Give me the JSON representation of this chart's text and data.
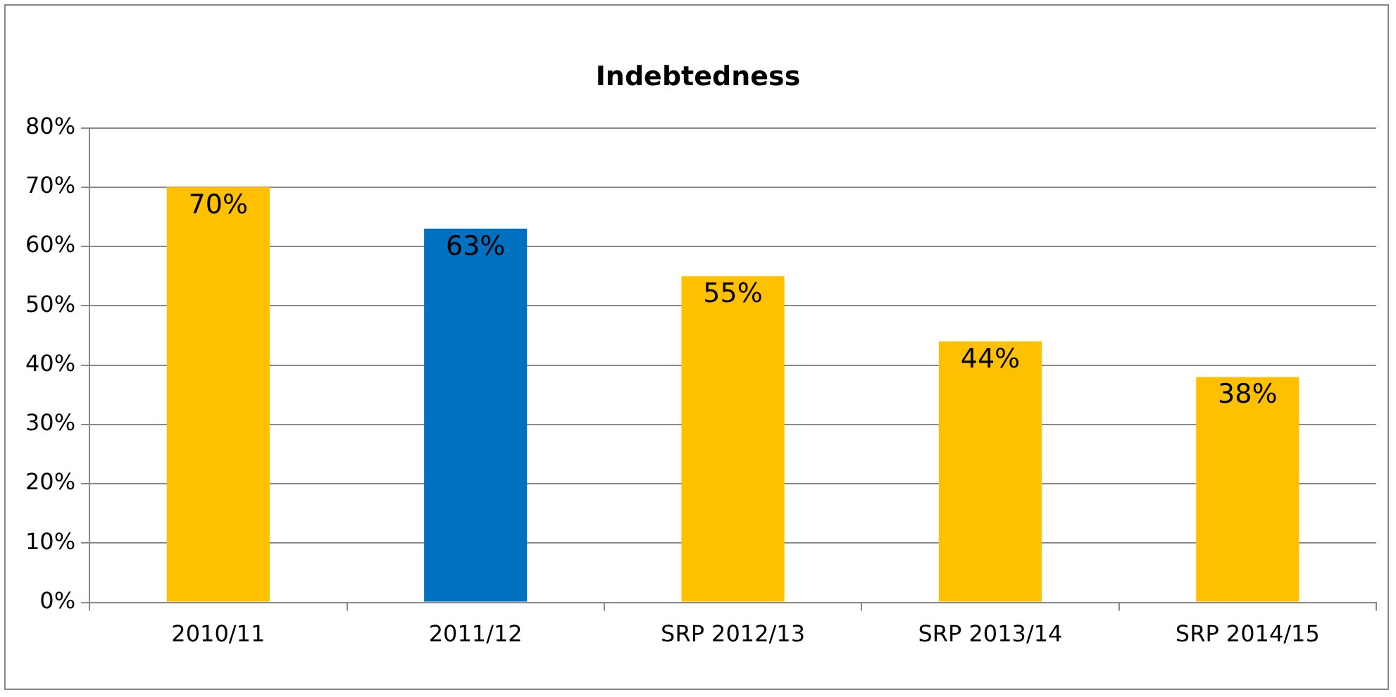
{
  "chart_data": {
    "type": "bar",
    "title": "Indebtedness",
    "categories": [
      "2010/11",
      "2011/12",
      "SRP 2012/13",
      "SRP 2013/14",
      "SRP 2014/15"
    ],
    "values": [
      70,
      63,
      55,
      44,
      38
    ],
    "colors": [
      "#ffc000",
      "#0070c0",
      "#ffc000",
      "#ffc000",
      "#ffc000"
    ],
    "value_labels": [
      "70%",
      "63%",
      "55%",
      "44%",
      "38%"
    ],
    "ylim": [
      0,
      80
    ],
    "yticks": [
      {
        "value": 0,
        "label": "0%"
      },
      {
        "value": 10,
        "label": "10%"
      },
      {
        "value": 20,
        "label": "20%"
      },
      {
        "value": 30,
        "label": "30%"
      },
      {
        "value": 40,
        "label": "40%"
      },
      {
        "value": 50,
        "label": "50%"
      },
      {
        "value": 60,
        "label": "60%"
      },
      {
        "value": 70,
        "label": "70%"
      },
      {
        "value": 80,
        "label": "80%"
      }
    ],
    "grid": "y",
    "legend": false
  }
}
